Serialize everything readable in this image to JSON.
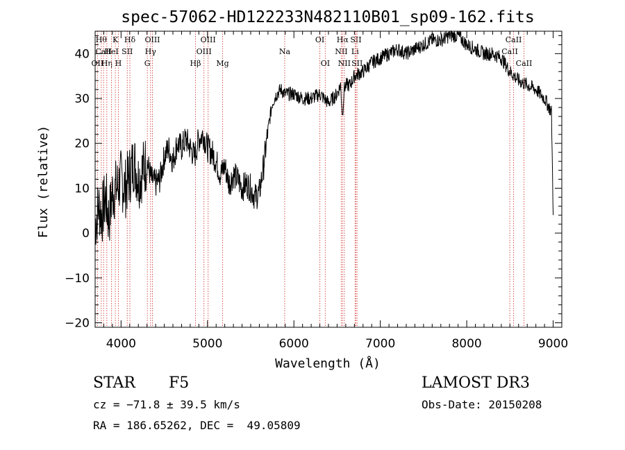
{
  "chart_data": {
    "type": "line",
    "title": "spec-57062-HD122233N482110B01_sp09-162.fits",
    "xlabel": "Wavelength (Å)",
    "ylabel": "Flux (relative)",
    "xlim": [
      3700,
      9100
    ],
    "ylim": [
      -21,
      45
    ],
    "x_ticks": [
      4000,
      5000,
      6000,
      7000,
      8000,
      9000
    ],
    "y_ticks": [
      -20,
      -10,
      0,
      10,
      20,
      30,
      40
    ],
    "grid": false,
    "series": [
      {
        "name": "flux",
        "x": [
          3700,
          3740,
          3780,
          3820,
          3860,
          3900,
          3950,
          4000,
          4050,
          4100,
          4150,
          4200,
          4250,
          4300,
          4350,
          4400,
          4450,
          4500,
          4550,
          4600,
          4650,
          4700,
          4750,
          4800,
          4850,
          4900,
          4950,
          5000,
          5050,
          5100,
          5150,
          5200,
          5250,
          5300,
          5350,
          5400,
          5450,
          5500,
          5550,
          5600,
          5650,
          5700,
          5750,
          5800,
          5850,
          5900,
          6000,
          6100,
          6200,
          6300,
          6400,
          6500,
          6540,
          6563,
          6580,
          6600,
          6650,
          6700,
          6800,
          6900,
          7000,
          7100,
          7200,
          7300,
          7400,
          7500,
          7600,
          7700,
          7800,
          7900,
          8000,
          8100,
          8200,
          8300,
          8400,
          8500,
          8600,
          8700,
          8800,
          8900,
          8980,
          9000
        ],
        "y": [
          2,
          6,
          4,
          8,
          3,
          9,
          10,
          12,
          10,
          13,
          16,
          12,
          14,
          16,
          12,
          11,
          12,
          17,
          19,
          16,
          20,
          19,
          21,
          19,
          17,
          21,
          22,
          19,
          18,
          16,
          13,
          15,
          11,
          13,
          12,
          10,
          11,
          10,
          8,
          9,
          15,
          23,
          29,
          31,
          32,
          31,
          31,
          30,
          30,
          31,
          29,
          31,
          33,
          26,
          32,
          33,
          33,
          35,
          36,
          38,
          39,
          40,
          41,
          40,
          41,
          42,
          43,
          43,
          44,
          44,
          42,
          41,
          40,
          40,
          39,
          36,
          34,
          33,
          32,
          30,
          27,
          4
        ]
      }
    ],
    "line_labels": [
      {
        "wl": 3727,
        "text": "OII",
        "row": 3,
        "color": "#d9534f"
      },
      {
        "wl": 3771,
        "text": "Hθ",
        "row": 1,
        "color": "#d9534f"
      },
      {
        "wl": 3798,
        "text": "CaII",
        "row": 2,
        "color": "#d9534f"
      },
      {
        "wl": 3835,
        "text": "Hη",
        "row": 3,
        "color": "#d9534f"
      },
      {
        "wl": 3889,
        "text": "HeI",
        "row": 2,
        "color": "#d9534f"
      },
      {
        "wl": 3934,
        "text": "K",
        "row": 1,
        "color": "#d9534f"
      },
      {
        "wl": 3969,
        "text": "H",
        "row": 3,
        "color": "#d9534f"
      },
      {
        "wl": 4072,
        "text": "SII",
        "row": 2,
        "color": "#d9534f"
      },
      {
        "wl": 4102,
        "text": "Hδ",
        "row": 1,
        "color": "#d9534f"
      },
      {
        "wl": 4304,
        "text": "G",
        "row": 3,
        "color": "#d9534f"
      },
      {
        "wl": 4341,
        "text": "Hγ",
        "row": 2,
        "color": "#d9534f"
      },
      {
        "wl": 4363,
        "text": "OIII",
        "row": 1,
        "color": "#d9534f"
      },
      {
        "wl": 4861,
        "text": "Hβ",
        "row": 3,
        "color": "#d9534f"
      },
      {
        "wl": 4959,
        "text": "OIII",
        "row": 2,
        "color": "#d9534f"
      },
      {
        "wl": 5007,
        "text": "OIII",
        "row": 1,
        "color": "#d9534f"
      },
      {
        "wl": 5175,
        "text": "Mg",
        "row": 3,
        "color": "#d9534f"
      },
      {
        "wl": 5893,
        "text": "Na",
        "row": 2,
        "color": "#d9534f"
      },
      {
        "wl": 6300,
        "text": "OI",
        "row": 1,
        "color": "#d9534f"
      },
      {
        "wl": 6363,
        "text": "OI",
        "row": 3,
        "color": "#d9534f"
      },
      {
        "wl": 6548,
        "text": "NII",
        "row": 2,
        "color": "#d9534f"
      },
      {
        "wl": 6563,
        "text": "Hα",
        "row": 1,
        "color": "#d9534f"
      },
      {
        "wl": 6583,
        "text": "NII",
        "row": 3,
        "color": "#d9534f"
      },
      {
        "wl": 6708,
        "text": "Li",
        "row": 2,
        "color": "#d9534f"
      },
      {
        "wl": 6717,
        "text": "SII",
        "row": 1,
        "color": "#d9534f"
      },
      {
        "wl": 6731,
        "text": "SII",
        "row": 3,
        "color": "#d9534f"
      },
      {
        "wl": 8498,
        "text": "CaII",
        "row": 2,
        "color": "#d9534f"
      },
      {
        "wl": 8542,
        "text": "CaII",
        "row": 1,
        "color": "#d9534f"
      },
      {
        "wl": 8662,
        "text": "CaII",
        "row": 3,
        "color": "#d9534f"
      }
    ]
  },
  "info": {
    "object_class": "STAR",
    "subclass": "F5",
    "survey": "LAMOST DR3",
    "cz": "cz = −71.8 ± 39.5 km/s",
    "obs_date": "Obs-Date: 20150208",
    "coords": "RA = 186.65262, DEC =  49.05809"
  }
}
